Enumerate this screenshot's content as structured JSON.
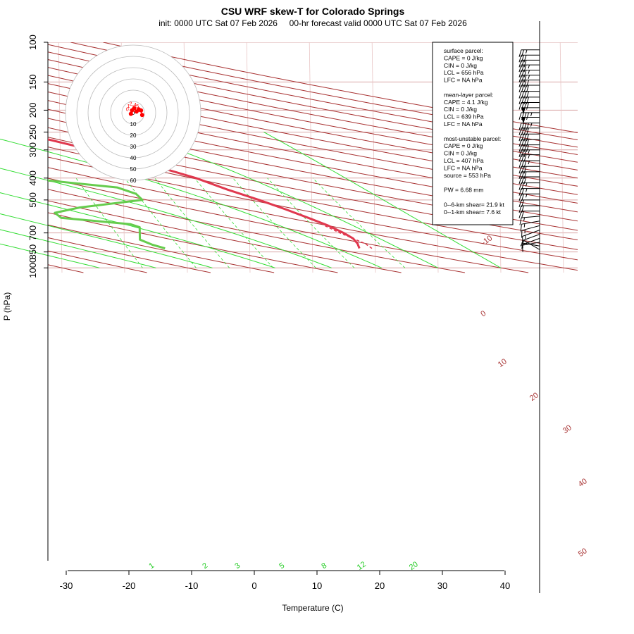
{
  "chart_data": {
    "type": "line",
    "chart_kind": "skew-T log-P",
    "title": "CSU WRF skew-T for Colorado Springs",
    "subtitle": "init: 0000 UTC Sat 07 Feb 2026     00-hr forecast valid 0000 UTC Sat 07 Feb 2026",
    "xlabel": "Temperature (C)",
    "ylabel": "P (hPa)",
    "xlim": [
      -33,
      51
    ],
    "ylim": [
      1050,
      100
    ],
    "y_scale": "log",
    "x_ticks": [
      -30,
      -20,
      -10,
      0,
      10,
      20,
      30,
      40
    ],
    "y_ticks": [
      100,
      150,
      200,
      250,
      300,
      400,
      500,
      700,
      850,
      1000
    ],
    "isobars": [
      100,
      150,
      200,
      250,
      300,
      400,
      500,
      700,
      850,
      1000
    ],
    "isotherms": [
      -100,
      -90,
      -80,
      -70,
      -60,
      -50,
      -40,
      -30,
      -20,
      -10,
      0,
      10,
      20,
      30,
      40,
      50
    ],
    "dry_adiabat_labels": [
      "-10",
      "0",
      "10",
      "20",
      "30",
      "40",
      "50"
    ],
    "moist_adiabats": [
      "1",
      "2",
      "3",
      "5",
      "8",
      "12",
      "20"
    ],
    "temperature_profile": {
      "name": "temperature",
      "color": "#e0384e",
      "points": [
        {
          "p": 820,
          "t": 17.5
        },
        {
          "p": 780,
          "t": 17.2
        },
        {
          "p": 740,
          "t": 16.5
        },
        {
          "p": 700,
          "t": 15.0
        },
        {
          "p": 650,
          "t": 12.6
        },
        {
          "p": 600,
          "t": 9.4
        },
        {
          "p": 550,
          "t": 5.8
        },
        {
          "p": 500,
          "t": 1.6
        },
        {
          "p": 450,
          "t": -3.4
        },
        {
          "p": 400,
          "t": -8.4
        },
        {
          "p": 350,
          "t": -15.5
        },
        {
          "p": 300,
          "t": -25.0
        },
        {
          "p": 265,
          "t": -33.0
        },
        {
          "p": 245,
          "t": -39.0
        },
        {
          "p": 220,
          "t": -43.0
        },
        {
          "p": 200,
          "t": -45.5
        },
        {
          "p": 175,
          "t": -49.5
        },
        {
          "p": 150,
          "t": -55.0
        },
        {
          "p": 130,
          "t": -60.5
        },
        {
          "p": 110,
          "t": -66.0
        }
      ]
    },
    "dewpoint_profile": {
      "name": "dewpoint",
      "color": "#66cc4d",
      "points": [
        {
          "p": 820,
          "t": -13.5
        },
        {
          "p": 790,
          "t": -15.5
        },
        {
          "p": 750,
          "t": -17.5
        },
        {
          "p": 700,
          "t": -17.5
        },
        {
          "p": 660,
          "t": -17.5
        },
        {
          "p": 640,
          "t": -19.0
        },
        {
          "p": 600,
          "t": -30.0
        },
        {
          "p": 570,
          "t": -31.0
        },
        {
          "p": 540,
          "t": -27.0
        },
        {
          "p": 500,
          "t": -17.0
        },
        {
          "p": 470,
          "t": -18.0
        },
        {
          "p": 440,
          "t": -21.0
        },
        {
          "p": 410,
          "t": -32.0
        },
        {
          "p": 385,
          "t": -41.0
        },
        {
          "p": 365,
          "t": -40.0
        },
        {
          "p": 330,
          "t": -34.0
        },
        {
          "p": 300,
          "t": -34.0
        },
        {
          "p": 270,
          "t": -38.0
        },
        {
          "p": 240,
          "t": -44.0
        },
        {
          "p": 210,
          "t": -51.0
        },
        {
          "p": 185,
          "t": -60.0
        }
      ]
    },
    "parcel_profile": {
      "name": "parcel",
      "style": "dashed",
      "points": [
        {
          "p": 820,
          "t": 19.5
        },
        {
          "p": 780,
          "t": 18.4
        },
        {
          "p": 700,
          "t": 14.4
        },
        {
          "p": 650,
          "t": 12.0
        }
      ]
    },
    "hodograph": {
      "ring_labels": [
        "0",
        "10",
        "20",
        "30",
        "40",
        "50",
        "60"
      ],
      "point_labels": [
        "0",
        "1",
        "2",
        "3",
        "4",
        "5",
        "6"
      ],
      "points": [
        {
          "u": -2,
          "v": -1
        },
        {
          "u": -1,
          "v": 2
        },
        {
          "u": 1,
          "v": 4
        },
        {
          "u": 3,
          "v": 1
        },
        {
          "u": 5,
          "v": 3
        },
        {
          "u": 7,
          "v": 2
        },
        {
          "u": 8,
          "v": -2
        }
      ]
    },
    "wind_barbs": [
      {
        "p": 830,
        "kt": 5,
        "dir": 300
      },
      {
        "p": 800,
        "kt": 5,
        "dir": 280
      },
      {
        "p": 770,
        "kt": 5,
        "dir": 260
      },
      {
        "p": 740,
        "kt": 10,
        "dir": 250
      },
      {
        "p": 710,
        "kt": 10,
        "dir": 250
      },
      {
        "p": 680,
        "kt": 15,
        "dir": 250
      },
      {
        "p": 650,
        "kt": 15,
        "dir": 255
      },
      {
        "p": 620,
        "kt": 15,
        "dir": 260
      },
      {
        "p": 590,
        "kt": 15,
        "dir": 265
      },
      {
        "p": 560,
        "kt": 20,
        "dir": 270
      },
      {
        "p": 530,
        "kt": 20,
        "dir": 270
      },
      {
        "p": 500,
        "kt": 20,
        "dir": 270
      },
      {
        "p": 470,
        "kt": 25,
        "dir": 270
      },
      {
        "p": 445,
        "kt": 25,
        "dir": 270
      },
      {
        "p": 420,
        "kt": 25,
        "dir": 270
      },
      {
        "p": 395,
        "kt": 30,
        "dir": 270
      },
      {
        "p": 375,
        "kt": 30,
        "dir": 270
      },
      {
        "p": 355,
        "kt": 30,
        "dir": 270
      },
      {
        "p": 335,
        "kt": 35,
        "dir": 270
      },
      {
        "p": 315,
        "kt": 35,
        "dir": 270
      },
      {
        "p": 300,
        "kt": 35,
        "dir": 270
      },
      {
        "p": 285,
        "kt": 40,
        "dir": 270
      },
      {
        "p": 270,
        "kt": 40,
        "dir": 270
      },
      {
        "p": 255,
        "kt": 40,
        "dir": 270
      },
      {
        "p": 240,
        "kt": 40,
        "dir": 270
      },
      {
        "p": 228,
        "kt": 45,
        "dir": 270
      },
      {
        "p": 215,
        "kt": 50,
        "dir": 270
      },
      {
        "p": 205,
        "kt": 45,
        "dir": 270
      },
      {
        "p": 195,
        "kt": 50,
        "dir": 270
      },
      {
        "p": 185,
        "kt": 40,
        "dir": 270
      },
      {
        "p": 175,
        "kt": 40,
        "dir": 270
      },
      {
        "p": 165,
        "kt": 40,
        "dir": 270
      },
      {
        "p": 155,
        "kt": 40,
        "dir": 270
      },
      {
        "p": 147,
        "kt": 40,
        "dir": 270
      },
      {
        "p": 140,
        "kt": 35,
        "dir": 270
      },
      {
        "p": 133,
        "kt": 35,
        "dir": 270
      },
      {
        "p": 126,
        "kt": 35,
        "dir": 270
      },
      {
        "p": 120,
        "kt": 30,
        "dir": 270
      },
      {
        "p": 114,
        "kt": 30,
        "dir": 270
      },
      {
        "p": 108,
        "kt": 25,
        "dir": 270
      }
    ],
    "legend_placement": "top-right",
    "legend_lines": [
      "surface parcel:",
      "CAPE = 0 J/kg",
      "CIN = 0 J/kg",
      "LCL = 656 hPa",
      "LFC = NA hPa",
      "",
      "mean-layer parcel:",
      "CAPE = 4.1 J/kg",
      "CIN = 0 J/kg",
      "LCL = 639 hPa",
      "LFC = NA hPa",
      "",
      "most-unstable parcel:",
      "CAPE = 0 J/kg",
      "CIN = 0 J/kg",
      "LCL = 407 hPa",
      "LFC = NA hPa",
      "source = 553 hPa",
      "",
      "PW =  6.68 mm",
      "",
      "0--6-km shear= 21.9 kt",
      "0--1-km shear= 7.6 kt"
    ],
    "colors": {
      "isotherm": "#a83232",
      "isobar": "#d9a6a6",
      "dry_adiabat": "#a83232",
      "moist_adiabat": "#33dd33",
      "mixing_ratio": "#33dd33",
      "temperature": "#e0384e",
      "dewpoint": "#66cc4d",
      "hodograph_points": "#ff0000"
    }
  }
}
